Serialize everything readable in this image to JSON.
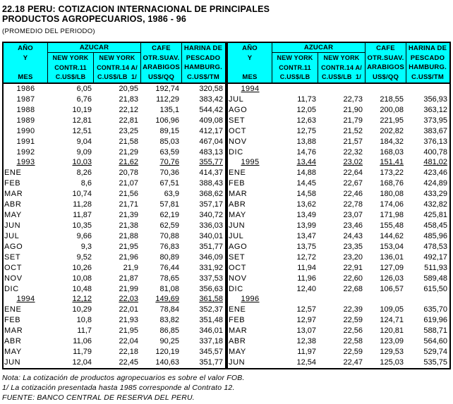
{
  "title": {
    "line1": "22.18  PERU: COTIZACION INTERNACIONAL DE PRINCIPALES",
    "line2": "PRODUCTOS AGROPECUARIOS, 1986 - 96",
    "subtitle": "(PROMEDIO DEL PERIODO)"
  },
  "colors": {
    "header_bg": "#00FFFF",
    "border": "#000000",
    "text": "#000000"
  },
  "header": {
    "anio": "AÑO\nY\n\nMES",
    "azucar_title": "AZUCAR",
    "azucar_sub1": "NEW YORK\nCONTR.11\nC.US$/LB",
    "azucar_sub2": "NEW YORK\nCONTR.14 A/\nC.US$/LB  1/",
    "cafe": "CAFE\nOTR.SUAV.\nARABIGOS\nUS$/QQ",
    "harina": "HARINA DE\nPESCADO\nHAMBURG.\nC.US$/TM"
  },
  "tables": [
    {
      "rows": [
        {
          "label": "1986",
          "year": true,
          "u": false,
          "v": [
            "6,05",
            "20,95",
            "192,74",
            "320,58"
          ]
        },
        {
          "label": "1987",
          "year": true,
          "u": false,
          "v": [
            "6,76",
            "21,83",
            "112,29",
            "383,42"
          ]
        },
        {
          "label": "1988",
          "year": true,
          "u": false,
          "v": [
            "10,19",
            "22,12",
            "135,1",
            "544,42"
          ]
        },
        {
          "label": "1989",
          "year": true,
          "u": false,
          "v": [
            "12,81",
            "22,81",
            "106,96",
            "409,08"
          ]
        },
        {
          "label": "1990",
          "year": true,
          "u": false,
          "v": [
            "12,51",
            "23,25",
            "89,15",
            "412,17"
          ]
        },
        {
          "label": "1991",
          "year": true,
          "u": false,
          "v": [
            "9,04",
            "21,58",
            "85,03",
            "467,04"
          ]
        },
        {
          "label": "1992",
          "year": true,
          "u": false,
          "v": [
            "9,09",
            "21,29",
            "63,59",
            "483,13"
          ]
        },
        {
          "label": "1993",
          "year": true,
          "u": true,
          "v": [
            "10,03",
            "21,62",
            "70,76",
            "355,77"
          ]
        },
        {
          "label": "ENE",
          "year": false,
          "u": false,
          "v": [
            "8,26",
            "20,78",
            "70,36",
            "414,37"
          ]
        },
        {
          "label": "FEB",
          "year": false,
          "u": false,
          "v": [
            "8,6",
            "21,07",
            "67,51",
            "388,43"
          ]
        },
        {
          "label": "MAR",
          "year": false,
          "u": false,
          "v": [
            "10,74",
            "21,56",
            "63,9",
            "368,62"
          ]
        },
        {
          "label": "ABR",
          "year": false,
          "u": false,
          "v": [
            "11,28",
            "21,71",
            "57,81",
            "357,17"
          ]
        },
        {
          "label": "MAY",
          "year": false,
          "u": false,
          "v": [
            "11,87",
            "21,39",
            "62,19",
            "340,72"
          ]
        },
        {
          "label": "JUN",
          "year": false,
          "u": false,
          "v": [
            "10,35",
            "21,38",
            "62,59",
            "336,03"
          ]
        },
        {
          "label": "JUL",
          "year": false,
          "u": false,
          "v": [
            "9,66",
            "21,88",
            "70,88",
            "340,01"
          ]
        },
        {
          "label": "AGO",
          "year": false,
          "u": false,
          "v": [
            "9,3",
            "21,95",
            "76,83",
            "351,77"
          ]
        },
        {
          "label": "SET",
          "year": false,
          "u": false,
          "v": [
            "9,52",
            "21,96",
            "80,89",
            "346,09"
          ]
        },
        {
          "label": "OCT",
          "year": false,
          "u": false,
          "v": [
            "10,26",
            "21,9",
            "76,44",
            "331,92"
          ]
        },
        {
          "label": "NOV",
          "year": false,
          "u": false,
          "v": [
            "10,08",
            "21,87",
            "78,65",
            "337,53"
          ]
        },
        {
          "label": "DIC",
          "year": false,
          "u": false,
          "v": [
            "10,48",
            "21,99",
            "81,08",
            "356,63"
          ]
        },
        {
          "label": "1994",
          "year": true,
          "u": true,
          "v": [
            "12,12",
            "22,03",
            "149,69",
            "361,58"
          ]
        },
        {
          "label": "ENE",
          "year": false,
          "u": false,
          "v": [
            "10,29",
            "22,01",
            "78,84",
            "352,37"
          ]
        },
        {
          "label": "FEB",
          "year": false,
          "u": false,
          "v": [
            "10,8",
            "21,93",
            "83,82",
            "351,48"
          ]
        },
        {
          "label": "MAR",
          "year": false,
          "u": false,
          "v": [
            "11,7",
            "21,95",
            "86,85",
            "346,01"
          ]
        },
        {
          "label": "ABR",
          "year": false,
          "u": false,
          "v": [
            "11,06",
            "22,04",
            "90,25",
            "337,18"
          ]
        },
        {
          "label": "MAY",
          "year": false,
          "u": false,
          "v": [
            "11,79",
            "22,18",
            "120,19",
            "345,57"
          ]
        },
        {
          "label": "JUN",
          "year": false,
          "u": false,
          "v": [
            "12,04",
            "22,45",
            "140,63",
            "351,77"
          ]
        }
      ]
    },
    {
      "rows": [
        {
          "label": "1994",
          "year": true,
          "u": true,
          "v": [
            "",
            "",
            "",
            ""
          ]
        },
        {
          "label": "JUL",
          "year": false,
          "u": false,
          "v": [
            "11,73",
            "22,73",
            "218,55",
            "356,93"
          ]
        },
        {
          "label": "AGO",
          "year": false,
          "u": false,
          "v": [
            "12,05",
            "21,90",
            "200,08",
            "363,12"
          ]
        },
        {
          "label": "SET",
          "year": false,
          "u": false,
          "v": [
            "12,63",
            "21,79",
            "221,95",
            "373,95"
          ]
        },
        {
          "label": "OCT",
          "year": false,
          "u": false,
          "v": [
            "12,75",
            "21,52",
            "202,82",
            "383,67"
          ]
        },
        {
          "label": "NOV",
          "year": false,
          "u": false,
          "v": [
            "13,88",
            "21,57",
            "184,32",
            "376,13"
          ]
        },
        {
          "label": "DIC",
          "year": false,
          "u": false,
          "v": [
            "14,76",
            "22,32",
            "168,03",
            "400,78"
          ]
        },
        {
          "label": "1995",
          "year": true,
          "u": true,
          "v": [
            "13,44",
            "23,02",
            "151,41",
            "481,02"
          ]
        },
        {
          "label": "ENE",
          "year": false,
          "u": false,
          "v": [
            "14,88",
            "22,64",
            "173,22",
            "423,46"
          ]
        },
        {
          "label": "FEB",
          "year": false,
          "u": false,
          "v": [
            "14,45",
            "22,67",
            "168,76",
            "424,89"
          ]
        },
        {
          "label": "MAR",
          "year": false,
          "u": false,
          "v": [
            "14,58",
            "22,46",
            "180,08",
            "433,29"
          ]
        },
        {
          "label": "ABR",
          "year": false,
          "u": false,
          "v": [
            "13,62",
            "22,78",
            "174,06",
            "432,82"
          ]
        },
        {
          "label": "MAY",
          "year": false,
          "u": false,
          "v": [
            "13,49",
            "23,07",
            "171,98",
            "425,81"
          ]
        },
        {
          "label": "JUN",
          "year": false,
          "u": false,
          "v": [
            "13,99",
            "23,46",
            "155,48",
            "458,45"
          ]
        },
        {
          "label": "JUL",
          "year": false,
          "u": false,
          "v": [
            "13,47",
            "24,43",
            "144,62",
            "485,96"
          ]
        },
        {
          "label": "AGO",
          "year": false,
          "u": false,
          "v": [
            "13,75",
            "23,35",
            "153,04",
            "478,53"
          ]
        },
        {
          "label": "SET",
          "year": false,
          "u": false,
          "v": [
            "12,72",
            "23,20",
            "136,01",
            "492,17"
          ]
        },
        {
          "label": "OCT",
          "year": false,
          "u": false,
          "v": [
            "11,94",
            "22,91",
            "127,09",
            "511,93"
          ]
        },
        {
          "label": "NOV",
          "year": false,
          "u": false,
          "v": [
            "11,96",
            "22,60",
            "126,03",
            "589,48"
          ]
        },
        {
          "label": "DIC",
          "year": false,
          "u": false,
          "v": [
            "12,40",
            "22,68",
            "106,57",
            "615,50"
          ]
        },
        {
          "label": "1996",
          "year": true,
          "u": true,
          "v": [
            "",
            "",
            "",
            ""
          ]
        },
        {
          "label": "ENE",
          "year": false,
          "u": false,
          "v": [
            "12,57",
            "22,39",
            "109,05",
            "635,70"
          ]
        },
        {
          "label": "FEB",
          "year": false,
          "u": false,
          "v": [
            "12,97",
            "22,59",
            "124,71",
            "619,96"
          ]
        },
        {
          "label": "MAR",
          "year": false,
          "u": false,
          "v": [
            "13,07",
            "22,56",
            "120,81",
            "588,71"
          ]
        },
        {
          "label": "ABR",
          "year": false,
          "u": false,
          "v": [
            "12,38",
            "22,58",
            "123,09",
            "564,60"
          ]
        },
        {
          "label": "MAY",
          "year": false,
          "u": false,
          "v": [
            "11,97",
            "22,59",
            "129,53",
            "529,74"
          ]
        },
        {
          "label": "JUN",
          "year": false,
          "u": false,
          "v": [
            "12,54",
            "22,47",
            "125,03",
            "535,75"
          ]
        }
      ]
    }
  ],
  "notes": [
    "Nota: La cotización de productos agropecuarios es sobre el valor FOB.",
    "1/ La cotización presentada hasta 1985 corresponde al Contrato 12.",
    "FUENTE: BANCO CENTRAL DE RESERVA DEL PERU."
  ]
}
